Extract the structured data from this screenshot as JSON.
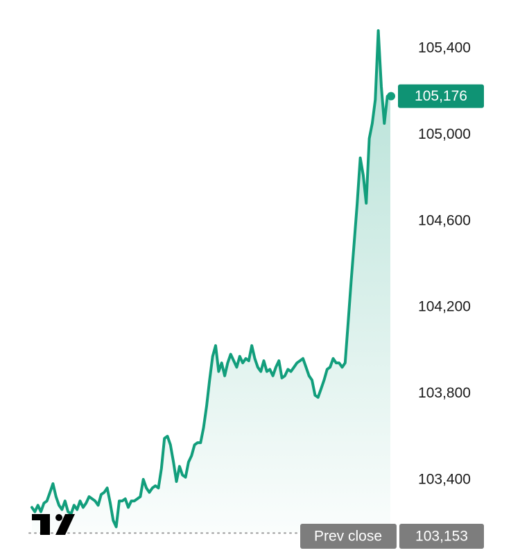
{
  "chart_data": {
    "type": "area",
    "title": "",
    "xlabel": "",
    "ylabel": "",
    "ylim": [
      103153,
      105520
    ],
    "y_ticks": [
      {
        "value": 105400,
        "label": "105,400"
      },
      {
        "value": 105000,
        "label": "105,000"
      },
      {
        "value": 104600,
        "label": "104,600"
      },
      {
        "value": 104200,
        "label": "104,200"
      },
      {
        "value": 103800,
        "label": "103,800"
      },
      {
        "value": 103400,
        "label": "103,400"
      }
    ],
    "grid": false,
    "series": [
      {
        "values": [
          103270,
          103250,
          103280,
          103250,
          103290,
          103300,
          103340,
          103380,
          103320,
          103280,
          103260,
          103300,
          103250,
          103240,
          103280,
          103260,
          103300,
          103270,
          103290,
          103320,
          103310,
          103300,
          103280,
          103330,
          103340,
          103360,
          103290,
          103210,
          103180,
          103300,
          103300,
          103310,
          103270,
          103300,
          103300,
          103310,
          103320,
          103400,
          103360,
          103340,
          103360,
          103370,
          103360,
          103450,
          103590,
          103600,
          103560,
          103480,
          103390,
          103460,
          103420,
          103410,
          103480,
          103510,
          103560,
          103570,
          103570,
          103640,
          103740,
          103860,
          103970,
          104020,
          103900,
          103940,
          103880,
          103940,
          103980,
          103950,
          103920,
          103970,
          103940,
          103960,
          103950,
          104020,
          103960,
          103920,
          103900,
          103950,
          103900,
          103910,
          103880,
          103920,
          103950,
          103870,
          103880,
          103910,
          103900,
          103920,
          103940,
          103950,
          103960,
          103920,
          103880,
          103860,
          103790,
          103780,
          103820,
          103860,
          103910,
          103920,
          103960,
          103940,
          103940,
          103920,
          103940,
          104130,
          104320,
          104500,
          104680,
          104890,
          104810,
          104680,
          104980,
          105050,
          105160,
          105480,
          105220,
          105050,
          105176,
          105176
        ],
        "last_value": 105176,
        "last_label": "105,176",
        "color": "#129e7c"
      }
    ],
    "reference_line": {
      "value": 103153,
      "name": "Prev close",
      "label": "103,153"
    },
    "colors": {
      "line": "#129e7c",
      "badge_price": "#0f9374",
      "badge_prev": "#7d7d7d",
      "axis_text": "#1a1a1a",
      "logo": "#000000"
    },
    "logo_icon": "tradingview-logo-icon"
  }
}
